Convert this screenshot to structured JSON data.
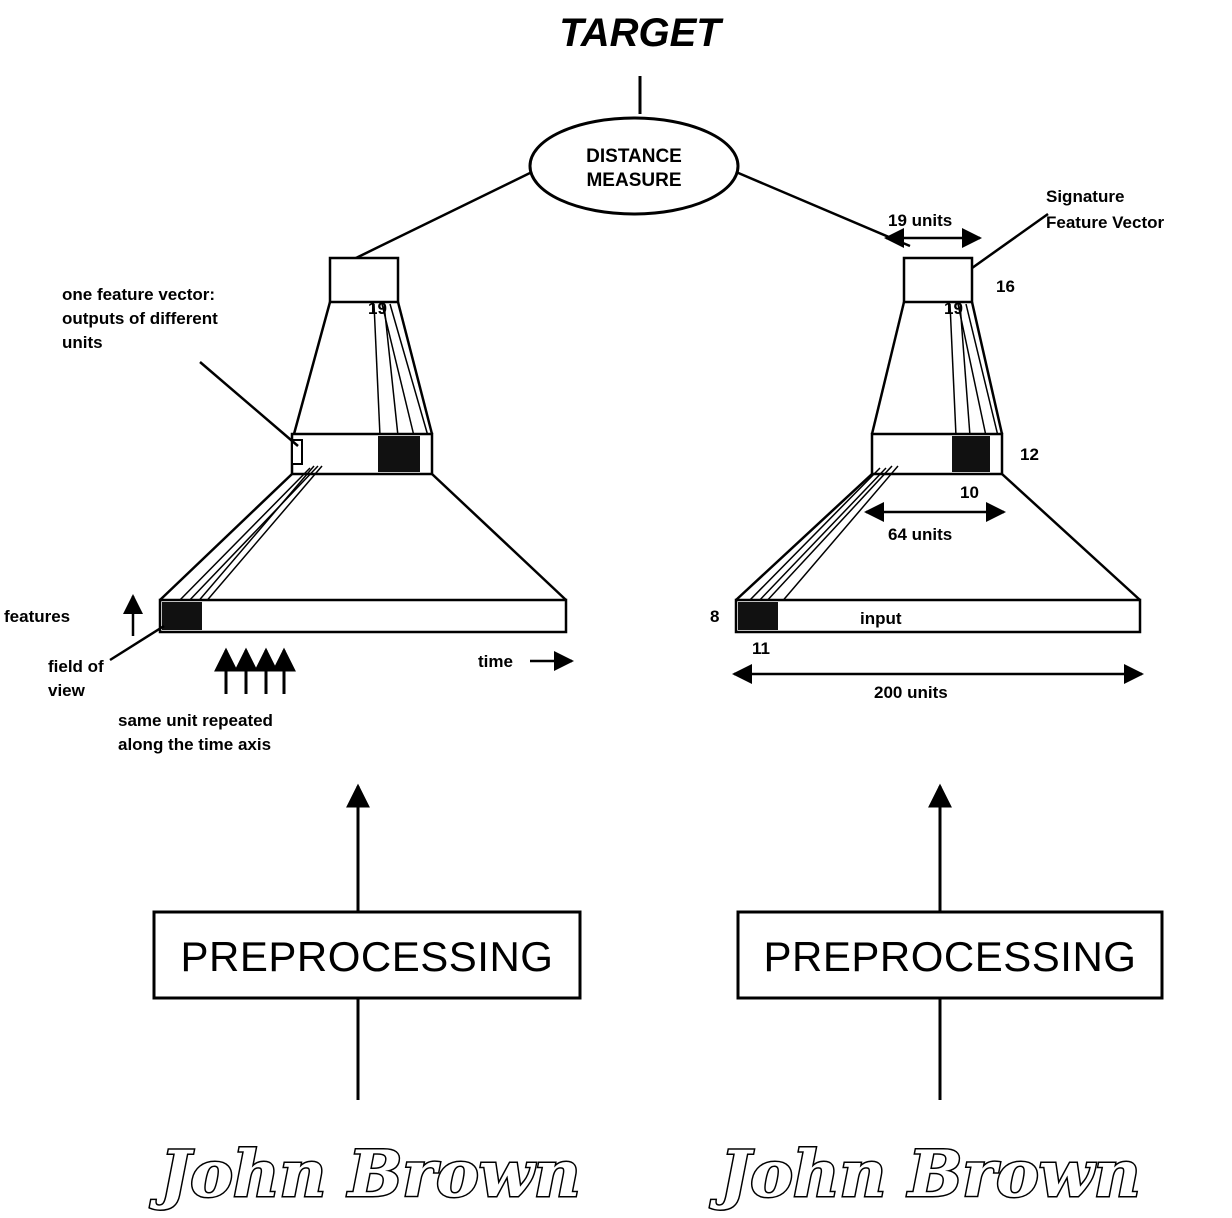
{
  "title": "TARGET",
  "distance_measure": {
    "line1": "DISTANCE",
    "line2": "MEASURE"
  },
  "left_network": {
    "annotation_lines": [
      "one feature vector:",
      "outputs of different",
      "units"
    ],
    "top_num": "19",
    "features_label": "features",
    "field_of_view_lines": [
      "field of",
      "view"
    ],
    "repeated_lines": [
      "same unit repeated",
      "along the time axis"
    ],
    "time_label": "time"
  },
  "right_network": {
    "top_width_label": "19 units",
    "signature_lines": [
      "Signature",
      "Feature Vector"
    ],
    "num_16": "16",
    "top_num": "19",
    "num_12": "12",
    "num_10": "10",
    "mid_width_label": "64 units",
    "num_8": "8",
    "input_label": "input",
    "num_11": "11",
    "bottom_width_label": "200 units"
  },
  "preprocessing_left": "PREPROCESSING",
  "preprocessing_right": "PREPROCESSING",
  "signature_left": "John Brown",
  "signature_right": "John Brown"
}
